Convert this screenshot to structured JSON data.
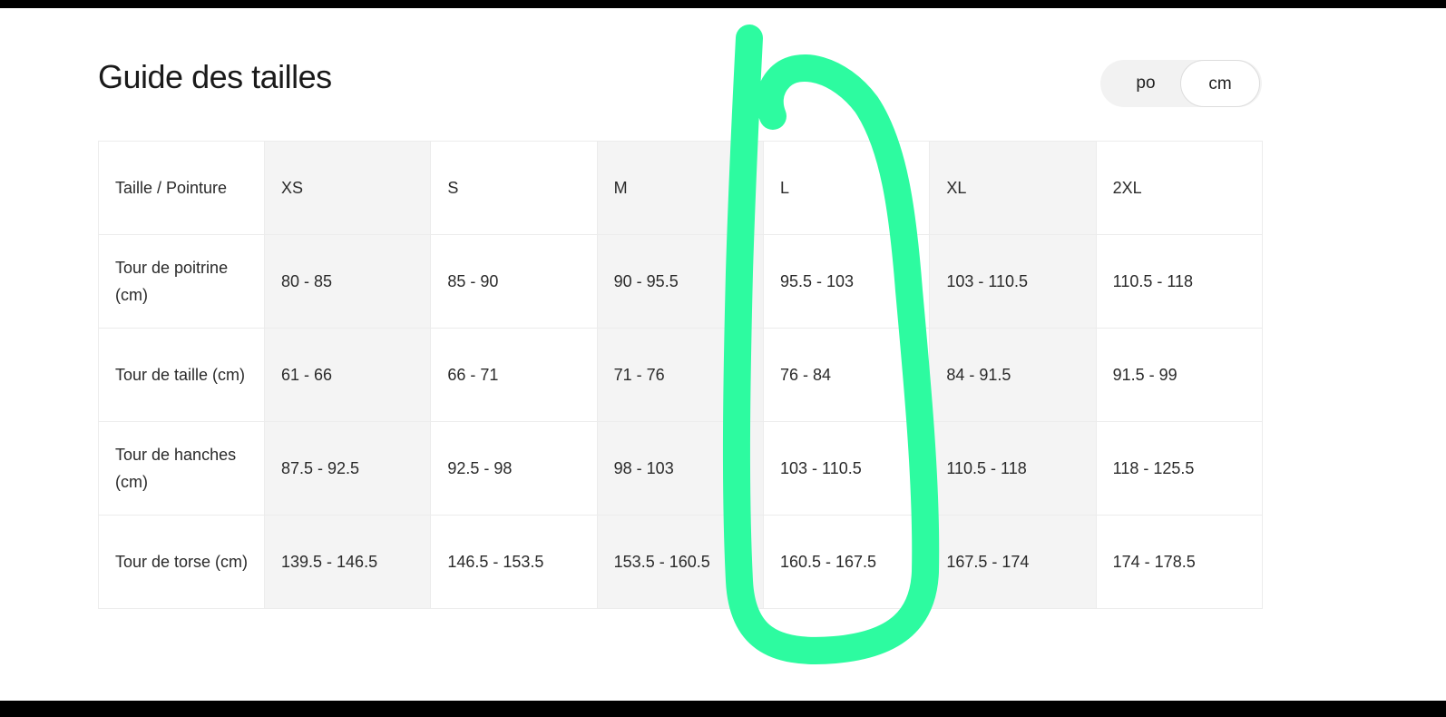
{
  "title": "Guide des tailles",
  "unit_toggle": {
    "options": [
      "po",
      "cm"
    ],
    "selected": "cm"
  },
  "table": {
    "header_label": "Taille / Pointure",
    "sizes": [
      "XS",
      "S",
      "M",
      "L",
      "XL",
      "2XL"
    ],
    "rows": [
      {
        "label": "Tour de poitrine (cm)",
        "values": [
          "80 - 85",
          "85 - 90",
          "90 - 95.5",
          "95.5 - 103",
          "103 - 110.5",
          "110.5 - 118"
        ]
      },
      {
        "label": "Tour de taille (cm)",
        "values": [
          "61 - 66",
          "66 - 71",
          "71 - 76",
          "76 - 84",
          "84 - 91.5",
          "91.5 - 99"
        ]
      },
      {
        "label": "Tour de hanches (cm)",
        "values": [
          "87.5 - 92.5",
          "92.5 - 98",
          "98 - 103",
          "103 - 110.5",
          "110.5 - 118",
          "118 - 125.5"
        ]
      },
      {
        "label": "Tour de torse (cm)",
        "values": [
          "139.5 - 146.5",
          "146.5 - 153.5",
          "153.5 - 160.5",
          "160.5 - 167.5",
          "167.5 - 174",
          "174 - 178.5"
        ]
      }
    ]
  },
  "annotation": {
    "color": "#2dfba0",
    "highlighted_column": "L"
  }
}
